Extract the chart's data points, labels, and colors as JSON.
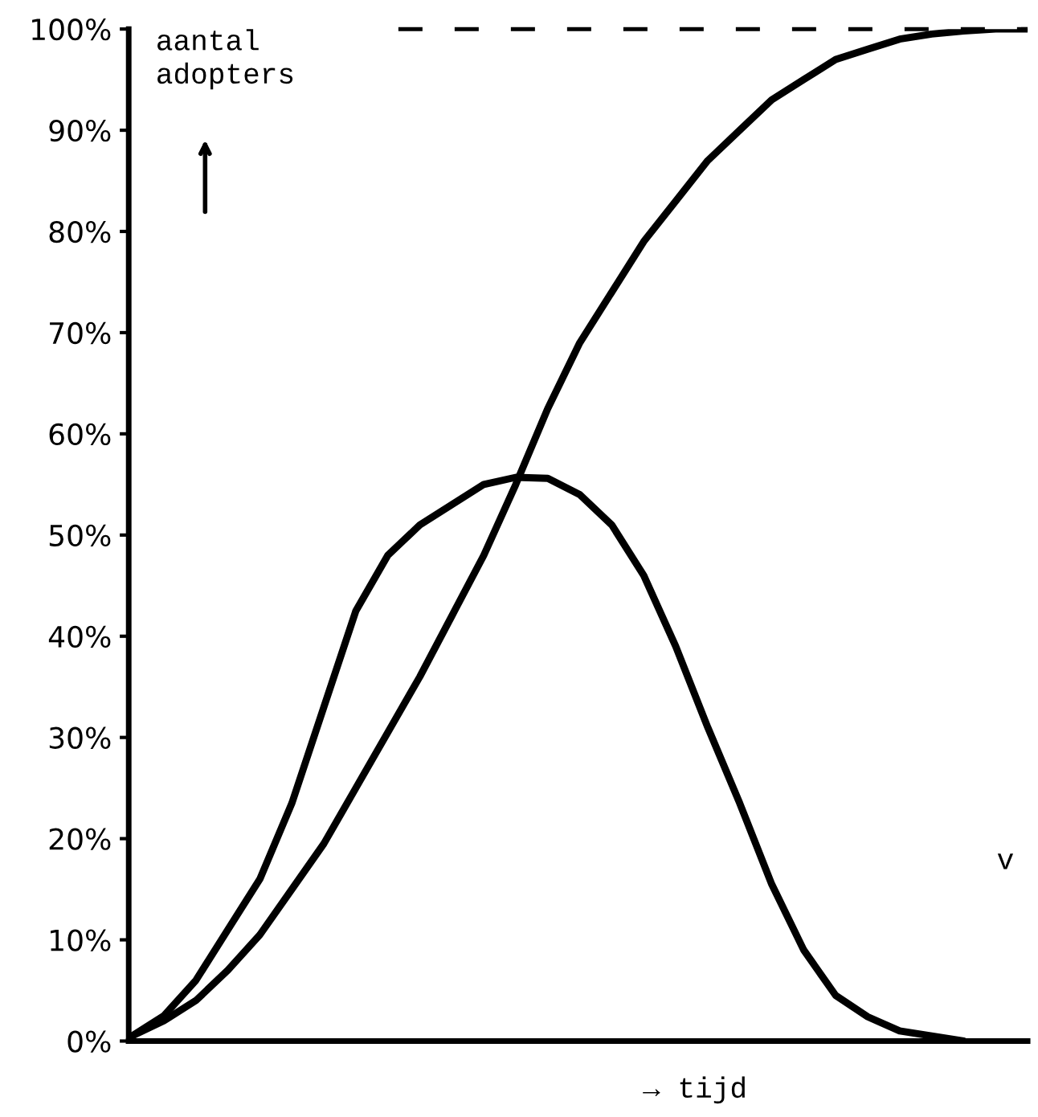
{
  "chart_data": {
    "type": "line",
    "ylabel": "aantal adopters",
    "xlabel": "→ tijd",
    "categories": [
      null,
      null,
      null,
      null,
      null,
      null,
      null,
      null,
      null,
      null,
      null,
      null,
      null,
      null,
      null,
      null,
      null,
      null,
      null,
      null,
      null,
      null,
      null,
      null,
      null,
      null,
      null,
      null,
      null
    ],
    "series": [
      {
        "color": "#000000",
        "values": [
          0.5,
          2.5,
          6,
          11,
          16,
          23.5,
          33,
          42.5,
          48,
          51,
          53,
          55,
          55.7,
          55.6,
          54,
          51,
          46,
          39,
          31,
          23.5,
          15.5,
          9,
          4.5,
          2.4,
          1,
          0.5,
          0,
          null,
          null
        ]
      },
      {
        "color": "#000000",
        "values": [
          0.5,
          2,
          4,
          7,
          10.5,
          15,
          19.5,
          25,
          30.5,
          36,
          42,
          48,
          55,
          62.5,
          69,
          74,
          79,
          83,
          87,
          90,
          93,
          95,
          97,
          98,
          99,
          99.5,
          99.8,
          100,
          100
        ]
      }
    ],
    "ylim": [
      0,
      100
    ],
    "yticks": [
      {
        "value": 0,
        "label": "0%"
      },
      {
        "value": 10,
        "label": "10%"
      },
      {
        "value": 20,
        "label": "20%"
      },
      {
        "value": 30,
        "label": "30%"
      },
      {
        "value": 40,
        "label": "40%"
      },
      {
        "value": 50,
        "label": "50%"
      },
      {
        "value": 60,
        "label": "60%"
      },
      {
        "value": 70,
        "label": "70%"
      },
      {
        "value": 80,
        "label": "80%"
      },
      {
        "value": 90,
        "label": "90%"
      },
      {
        "value": 100,
        "label": "100%"
      }
    ],
    "tick_labels": "y",
    "grid": false,
    "legend": false,
    "marker": "none",
    "line_style": "solid",
    "ref_lines": [
      {
        "axis": "y",
        "value": 100,
        "color": "#000000",
        "line_style": "dashed"
      }
    ],
    "annotations": [
      "v"
    ]
  }
}
